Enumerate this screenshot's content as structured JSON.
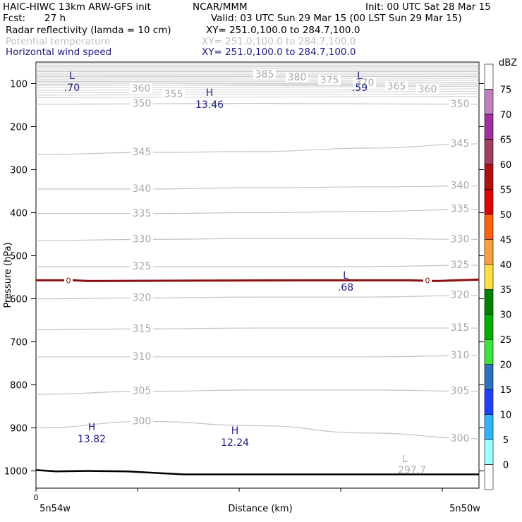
{
  "header": {
    "title": "HAIC-HIWC 13km ARW-GFS init",
    "org": "NCAR/MMM",
    "init": "Init: 00 UTC Sat 28 Mar 15",
    "fcst_label": "Fcst:",
    "fcst_value": "27 h",
    "valid": "Valid: 03 UTC Sun 29 Mar 15 (00 LST Sun 29 Mar 15)",
    "field1_name": "Radar reflectivity (lamda = 10 cm)",
    "field1_xy": "XY= 251.0,100.0 to 284.7,100.0",
    "field2_name": "Potential temperature",
    "field2_xy": "XY= 251.0,100.0 to 284.7,100.0",
    "field3_name": "Horizontal wind speed",
    "field3_xy": "XY= 251.0,100.0 to 284.7,100.0"
  },
  "chart_data": {
    "type": "line",
    "ylabel": "Pressure (hPa)",
    "xlabel": "Distance (km)",
    "y_ticks": [
      "100",
      "200",
      "300",
      "400",
      "500",
      "600",
      "700",
      "800",
      "900",
      "1000"
    ],
    "y_range": [
      50,
      1040
    ],
    "x_tick_labels": {
      "origin": "0",
      "left": "5n54w",
      "right": "5n50w"
    },
    "colorbar": {
      "unit": "dBZ",
      "levels": [
        "0",
        "5",
        "10",
        "15",
        "20",
        "25",
        "30",
        "35",
        "40",
        "45",
        "50",
        "55",
        "60",
        "65",
        "70",
        "75"
      ],
      "colors": [
        "#ffffff",
        "#a0ffff",
        "#30b4ff",
        "#2040ff",
        "#3070c0",
        "#40e040",
        "#00b000",
        "#008000",
        "#ffe040",
        "#ffa040",
        "#ff6010",
        "#e00000",
        "#b01010",
        "#a04060",
        "#a030a0",
        "#c080c0",
        "#ffffff"
      ]
    },
    "theta_contours": [
      {
        "label": "350",
        "y": [
          148,
          147,
          146,
          147,
          148
        ]
      },
      {
        "label": "345",
        "y": [
          265,
          260,
          258,
          250,
          240
        ]
      },
      {
        "label": "340",
        "y": [
          345,
          345,
          342,
          340,
          338
        ]
      },
      {
        "label": "335",
        "y": [
          402,
          402,
          400,
          397,
          392
        ]
      },
      {
        "label": "330",
        "y": [
          465,
          462,
          460,
          460,
          462
        ]
      },
      {
        "label": "325",
        "y": [
          525,
          525,
          525,
          525,
          522
        ]
      },
      {
        "label": "320",
        "y": [
          600,
          598,
          596,
          596,
          592
        ]
      },
      {
        "label": "315",
        "y": [
          672,
          670,
          668,
          668,
          668
        ]
      },
      {
        "label": "310",
        "y": [
          735,
          735,
          735,
          735,
          732
        ]
      },
      {
        "label": "305",
        "y": [
          822,
          815,
          812,
          812,
          815
        ]
      },
      {
        "label": "300",
        "y": [
          900,
          885,
          895,
          912,
          925
        ]
      }
    ],
    "theta_labels_top": [
      "360",
      "355",
      "385",
      "380",
      "375",
      "370",
      "365",
      "360"
    ],
    "zero_dbz_contour_label": "0",
    "zero_dbz_pressure": 557,
    "terrain_pressure": [
      998,
      1001,
      1000,
      1001,
      1008,
      1008,
      1008,
      1008
    ],
    "wind_extrema": [
      {
        "type": "L",
        "value": ".70"
      },
      {
        "type": "H",
        "value": "13.46"
      },
      {
        "type": "L",
        "value": ".59"
      },
      {
        "type": "L",
        "value": ".68"
      },
      {
        "type": "H",
        "value": "13.82"
      },
      {
        "type": "H",
        "value": "12.24"
      }
    ],
    "theta_extrema": [
      {
        "type": "L",
        "value": "297.7"
      }
    ]
  }
}
